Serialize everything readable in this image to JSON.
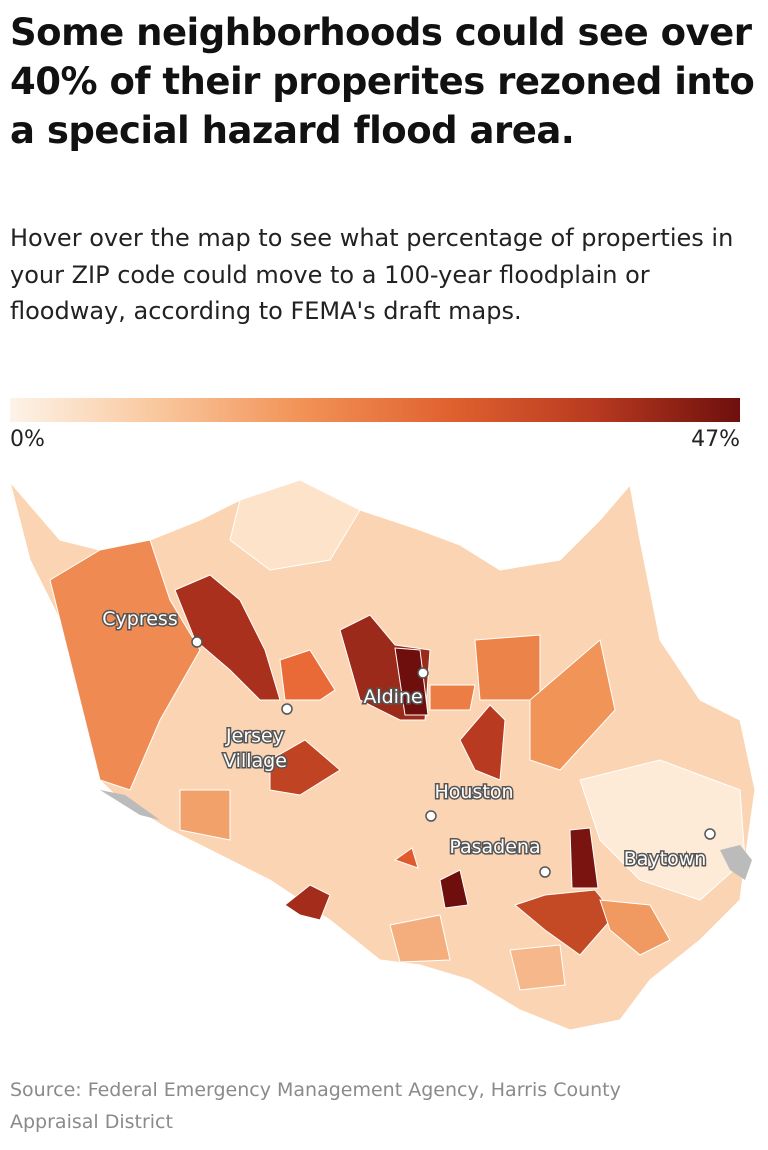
{
  "header": {
    "title": "Some neighborhoods could see over 40% of their properites rezoned into a special hazard flood area.",
    "subtitle": "Hover over the map to see what percentage of properties in your ZIP code could move to a 100-year floodplain or floodway, according to FEMA's draft maps."
  },
  "legend": {
    "colors": [
      "#fdf3e8",
      "#f9c89e",
      "#f29257",
      "#e0622f",
      "#b83a20",
      "#6e0f0d"
    ],
    "min": {
      "value": 0,
      "label": "0%"
    },
    "max": {
      "value": 47,
      "label": "47%"
    }
  },
  "map": {
    "cities": [
      {
        "lines": [
          "Cypress"
        ]
      },
      {
        "lines": [
          "Aldine"
        ]
      },
      {
        "lines": [
          "Jersey",
          "Village"
        ]
      },
      {
        "lines": [
          "Houston"
        ]
      },
      {
        "lines": [
          "Pasadena"
        ]
      },
      {
        "lines": [
          "Baytown"
        ]
      }
    ]
  },
  "footer": {
    "source": "Source: Federal Emergency Management Agency, Harris County Appraisal District"
  }
}
